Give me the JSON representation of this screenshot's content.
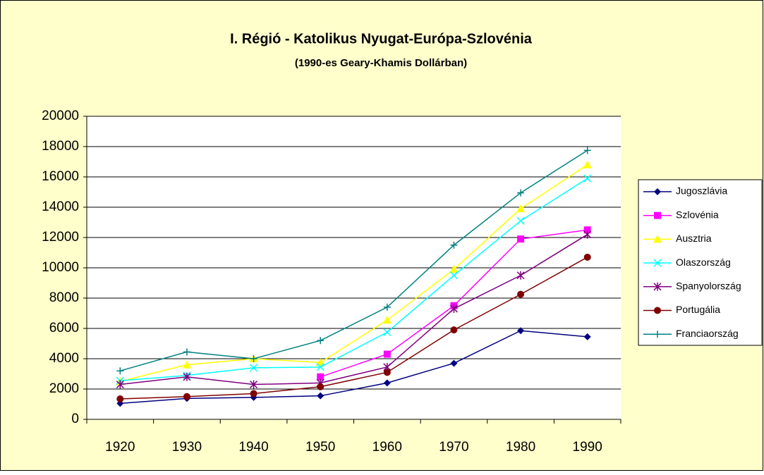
{
  "chart_data": {
    "type": "line",
    "title": "I. Régió - Katolikus Nyugat-Európa-Szlovénia",
    "subtitle": "(1990-es Geary-Khamis Dollárban)",
    "categories": [
      "1920",
      "1930",
      "1940",
      "1950",
      "1960",
      "1970",
      "1980",
      "1990"
    ],
    "series": [
      {
        "name": "Jugoszlávia",
        "color": "#000080",
        "marker": "diamond",
        "values": [
          1050,
          1380,
          1450,
          1550,
          2400,
          3700,
          5850,
          5450
        ]
      },
      {
        "name": "Szlovénia",
        "color": "#FF00FF",
        "marker": "square",
        "values": [
          null,
          null,
          null,
          2800,
          4300,
          7500,
          11900,
          12500
        ]
      },
      {
        "name": "Ausztria",
        "color": "#FFFF00",
        "marker": "triangle",
        "values": [
          2500,
          3600,
          4000,
          3750,
          6550,
          9900,
          13900,
          16800
        ]
      },
      {
        "name": "Olaszország",
        "color": "#00FFFF",
        "marker": "x",
        "values": [
          2550,
          2900,
          3400,
          3450,
          5750,
          9500,
          13100,
          15900
        ]
      },
      {
        "name": "Spanyolország",
        "color": "#800080",
        "marker": "star",
        "values": [
          2300,
          2800,
          2300,
          2400,
          3450,
          7300,
          9500,
          12200
        ]
      },
      {
        "name": "Portugália",
        "color": "#800000",
        "marker": "circle",
        "values": [
          1350,
          1500,
          1700,
          2150,
          3100,
          5900,
          8250,
          10700
        ]
      },
      {
        "name": "Franciaország",
        "color": "#008080",
        "marker": "plus",
        "values": [
          3200,
          4450,
          4000,
          5200,
          7400,
          11500,
          14950,
          17750
        ]
      }
    ],
    "ylim": [
      0,
      20000
    ],
    "yticks": [
      0,
      2000,
      4000,
      6000,
      8000,
      10000,
      12000,
      14000,
      16000,
      18000,
      20000
    ],
    "grid": true,
    "legend": "right"
  }
}
